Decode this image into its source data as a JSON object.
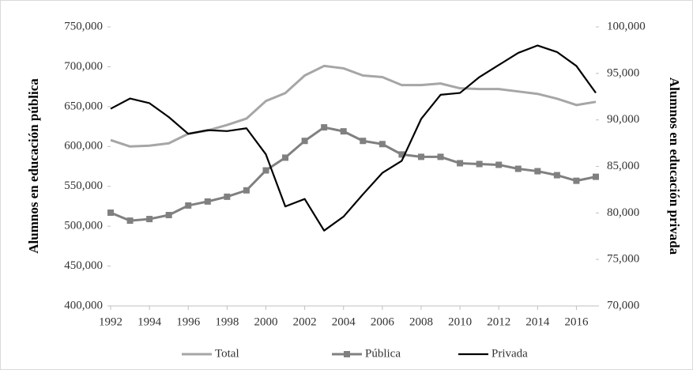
{
  "chart_data": {
    "type": "line",
    "y_label": "Alumnos  en educación  pública",
    "y2_label": "Alumnos  en educación  privada",
    "x": [
      1992,
      1993,
      1994,
      1995,
      1996,
      1997,
      1998,
      1999,
      2000,
      2001,
      2002,
      2003,
      2004,
      2005,
      2006,
      2007,
      2008,
      2009,
      2010,
      2011,
      2012,
      2013,
      2014,
      2015,
      2016,
      2017
    ],
    "xlim": [
      1992,
      2017
    ],
    "xticks": [
      1992,
      1994,
      1996,
      1998,
      2000,
      2002,
      2004,
      2006,
      2008,
      2010,
      2012,
      2014,
      2016
    ],
    "ylim": [
      400000,
      750000
    ],
    "yticks": [
      {
        "value": 400000,
        "label": "400,000"
      },
      {
        "value": 450000,
        "label": "450,000"
      },
      {
        "value": 500000,
        "label": "500,000"
      },
      {
        "value": 550000,
        "label": "550,000"
      },
      {
        "value": 600000,
        "label": "600,000"
      },
      {
        "value": 650000,
        "label": "650,000"
      },
      {
        "value": 700000,
        "label": "700,000"
      },
      {
        "value": 750000,
        "label": "750,000"
      }
    ],
    "y2lim": [
      70000,
      100000
    ],
    "y2ticks": [
      {
        "value": 70000,
        "label": "70,000"
      },
      {
        "value": 75000,
        "label": "75,000"
      },
      {
        "value": 80000,
        "label": "80,000"
      },
      {
        "value": 85000,
        "label": "85,000"
      },
      {
        "value": 90000,
        "label": "90,000"
      },
      {
        "value": 95000,
        "label": "95,000"
      },
      {
        "value": 100000,
        "label": "100,000"
      }
    ],
    "legend": "bottom",
    "series": [
      {
        "name": "Total",
        "color": "#a6a6a6",
        "values": [
          608000,
          600000,
          601000,
          604000,
          616000,
          620000,
          627000,
          635000,
          657000,
          667000,
          689000,
          701000,
          698000,
          689000,
          687000,
          677000,
          677000,
          679000,
          673000,
          672000,
          672000,
          669000,
          666000,
          660000,
          652000,
          656000
        ]
      },
      {
        "name": "Pública",
        "color": "#808080",
        "marker": "square",
        "values": [
          517000,
          507000,
          509000,
          514000,
          526000,
          531000,
          537000,
          545000,
          570000,
          586000,
          607000,
          624000,
          619000,
          607000,
          603000,
          590000,
          587000,
          587000,
          579000,
          578000,
          577000,
          572000,
          569000,
          564000,
          557000,
          562000
        ]
      },
      {
        "name": "Privada",
        "color": "#000000",
        "axis": "y2",
        "values": [
          91200,
          92300,
          91800,
          90300,
          88500,
          88900,
          88800,
          89100,
          86300,
          80700,
          81500,
          78100,
          79600,
          82000,
          84300,
          85600,
          90100,
          92700,
          92900,
          94600,
          95900,
          97200,
          98000,
          97300,
          95800,
          92900
        ]
      }
    ]
  }
}
